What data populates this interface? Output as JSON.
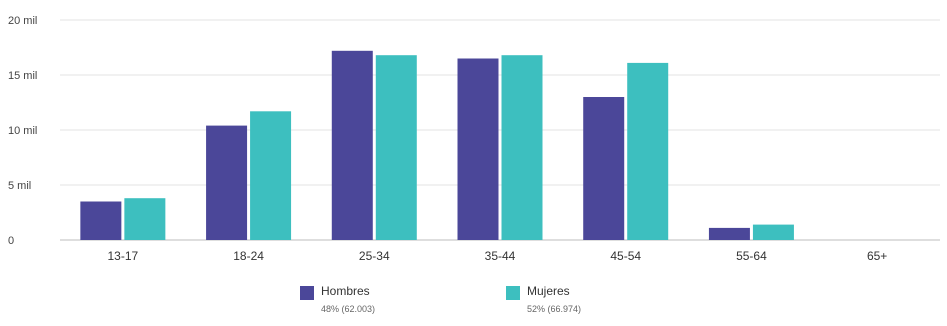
{
  "chart_data": {
    "type": "bar",
    "categories": [
      "13-17",
      "18-24",
      "25-34",
      "35-44",
      "45-54",
      "55-64",
      "65+"
    ],
    "series": [
      {
        "name": "Hombres",
        "color": "#4b4799",
        "values": [
          3500,
          10400,
          17200,
          16500,
          13000,
          1100,
          0
        ],
        "legend_sub": "48% (62.003)"
      },
      {
        "name": "Mujeres",
        "color": "#3dbfbf",
        "values": [
          3800,
          11700,
          16800,
          16800,
          16100,
          1400,
          0
        ],
        "legend_sub": "52% (66.974)"
      }
    ],
    "y_ticks": [
      {
        "value": 0,
        "label": "0"
      },
      {
        "value": 5000,
        "label": "5 mil"
      },
      {
        "value": 10000,
        "label": "10 mil"
      },
      {
        "value": 15000,
        "label": "15 mil"
      },
      {
        "value": 20000,
        "label": "20 mil"
      }
    ],
    "ylim": [
      0,
      20000
    ],
    "grid": true,
    "legend_position": "bottom"
  }
}
